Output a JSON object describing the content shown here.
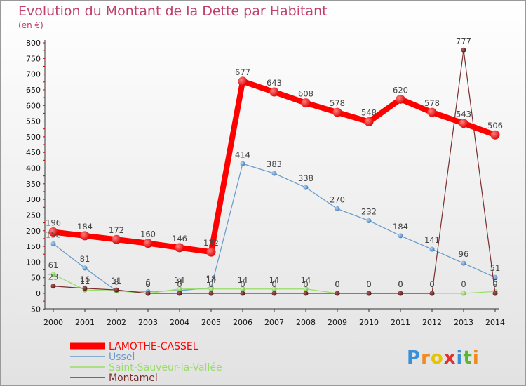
{
  "chart_data": {
    "type": "line",
    "title": "Evolution du Montant de la Dette par Habitant",
    "subtitle": "(en €)",
    "ylim": [
      -50,
      800
    ],
    "yticks": [
      -50,
      0,
      50,
      100,
      150,
      200,
      250,
      300,
      350,
      400,
      450,
      500,
      550,
      600,
      650,
      700,
      750,
      800
    ],
    "x": [
      "2000",
      "2001",
      "2002",
      "2003",
      "2004",
      "2005",
      "2006",
      "2007",
      "2008",
      "2009",
      "2010",
      "2011",
      "2012",
      "2013",
      "2014"
    ],
    "series": [
      {
        "name": "LAMOTHE-CASSEL",
        "color": "#ff0000",
        "values": [
          196,
          184,
          172,
          160,
          146,
          132,
          677,
          643,
          608,
          578,
          548,
          620,
          578,
          543,
          506
        ]
      },
      {
        "name": "Ussel",
        "color": "#6699cc",
        "values": [
          158,
          81,
          8,
          6,
          9,
          18,
          414,
          383,
          338,
          270,
          232,
          184,
          141,
          96,
          51
        ]
      },
      {
        "name": "Saint-Sauveur-la-Vallée",
        "color": "#99dd66",
        "values": [
          61,
          11,
          8,
          0,
          14,
          14,
          14,
          14,
          14,
          0,
          0,
          0,
          0,
          0,
          6
        ]
      },
      {
        "name": "Montamel",
        "color": "#7a2f2f",
        "values": [
          23,
          16,
          11,
          0,
          0,
          0,
          0,
          0,
          0,
          0,
          0,
          0,
          0,
          777,
          0
        ]
      }
    ],
    "data_labels": {
      "LAMOTHE-CASSEL": [
        "196",
        "184",
        "172",
        "160",
        "146",
        "132",
        "677",
        "643",
        "608",
        "578",
        "548",
        "620",
        "578",
        "543",
        "506"
      ],
      "Ussel": [
        "158",
        "81",
        "8",
        "6",
        "9",
        "18",
        "414",
        "383",
        "338",
        "270",
        "232",
        "184",
        "141",
        "96",
        "51"
      ],
      "Saint-Sauveur-la-Vallée": [
        "61",
        "11",
        "8",
        "0",
        "14",
        "14",
        "14",
        "14",
        "14",
        "0",
        "0",
        "0",
        "0",
        "0",
        "6"
      ],
      "Montamel": [
        "23",
        "16",
        "11",
        "0",
        "0",
        "0",
        "0",
        "0",
        "0",
        "0",
        "0",
        "0",
        "0",
        "777",
        "0"
      ]
    },
    "legend_position": "bottom-left",
    "grid": false
  },
  "brand": {
    "logo_text": "Proxiti",
    "letters": [
      "P",
      "r",
      "o",
      "x",
      "i",
      "t",
      "i"
    ]
  },
  "colors": {
    "title": "#c0406a",
    "background_top": "#ffffff",
    "background_bottom": "#e4e4e4",
    "axis_ticks": "#cc0000"
  }
}
